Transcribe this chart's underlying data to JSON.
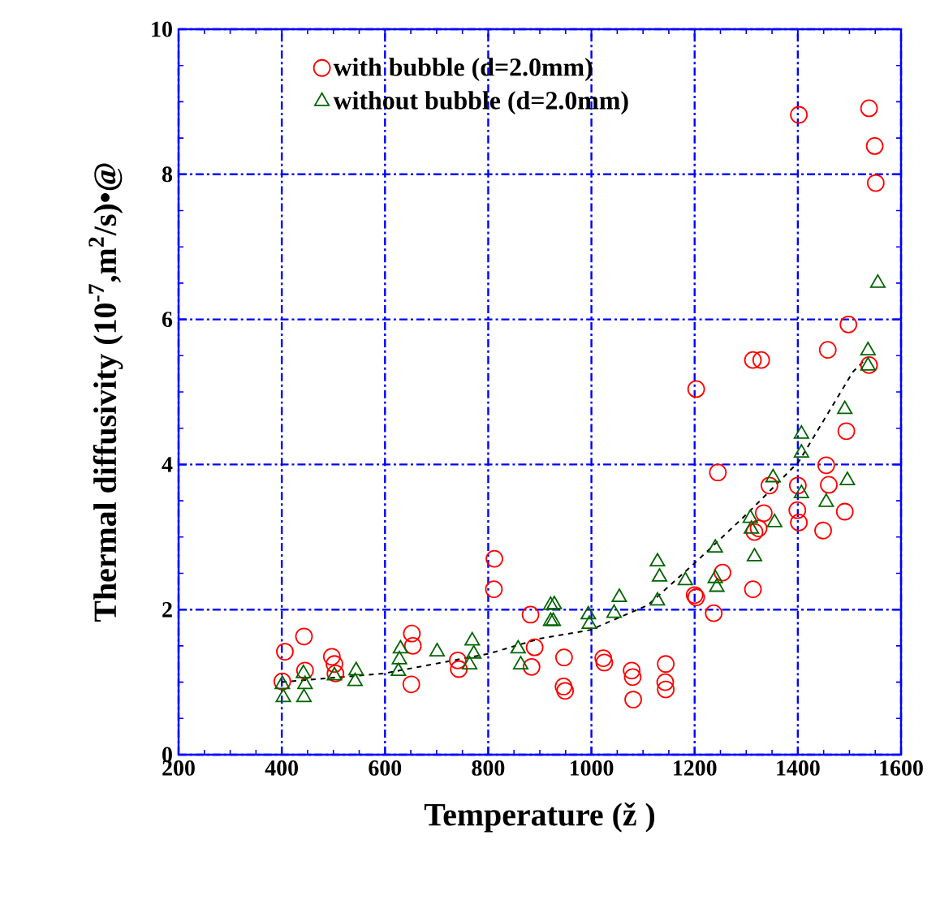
{
  "chart_data": {
    "type": "scatter",
    "xlabel": "Temperature (ž )",
    "ylabel": "Thermal diffusivity (10$^{-7}$,m$^{2}$/s)•@",
    "xlim": [
      200,
      1600
    ],
    "xticks": [
      200,
      400,
      600,
      800,
      1000,
      1200,
      1400,
      1600
    ],
    "ylim": [
      0,
      10
    ],
    "yticks": [
      0,
      2,
      4,
      6,
      8,
      10
    ],
    "grid": true,
    "legend": "top",
    "series": [
      {
        "name": "with bubble (d=2.0mm)",
        "color": "#ff0000",
        "marker": "circle",
        "x": [
          406,
          443,
          401,
          445,
          497,
          502,
          504,
          652,
          654,
          651,
          741,
          743,
          812,
          811,
          882,
          890,
          884,
          947,
          946,
          949,
          1023,
          1025,
          1078,
          1080,
          1081,
          1144,
          1143,
          1144,
          1203,
          1245,
          1200,
          1203,
          1237,
          1254,
          1313,
          1329,
          1313,
          1316,
          1324,
          1334,
          1345,
          1399,
          1402,
          1400,
          1458,
          1498,
          1455,
          1460,
          1449,
          1494,
          1491,
          1538,
          1402,
          1538,
          1549,
          1551
        ],
        "values": [
          1.42,
          1.63,
          1.01,
          1.16,
          1.35,
          1.25,
          1.12,
          1.67,
          1.5,
          0.97,
          1.3,
          1.18,
          2.7,
          2.28,
          1.93,
          1.48,
          1.21,
          1.34,
          0.94,
          0.88,
          1.33,
          1.27,
          1.16,
          1.07,
          0.76,
          1.25,
          1.0,
          0.9,
          5.04,
          3.89,
          2.2,
          2.17,
          1.95,
          2.51,
          5.44,
          5.44,
          2.28,
          3.07,
          3.12,
          3.33,
          3.71,
          3.37,
          3.2,
          3.71,
          5.58,
          5.93,
          3.99,
          3.72,
          3.09,
          4.46,
          3.35,
          5.37,
          8.82,
          8.91,
          8.39,
          7.88
        ]
      },
      {
        "name": "without bubble (d=2.0mm)",
        "color": "#006400",
        "marker": "triangle",
        "x": [
          401,
          403,
          442,
          445,
          443,
          502,
          544,
          542,
          630,
          628,
          626,
          701,
          769,
          772,
          764,
          858,
          863,
          921,
          921,
          928,
          926,
          994,
          996,
          1044,
          1054,
          1128,
          1132,
          1128,
          1182,
          1240,
          1240,
          1243,
          1308,
          1310,
          1316,
          1352,
          1355,
          1407,
          1407,
          1407,
          1455,
          1491,
          1496,
          1536,
          1536,
          1555
        ],
        "values": [
          0.97,
          0.79,
          1.12,
          0.97,
          0.79,
          1.09,
          1.16,
          1.01,
          1.46,
          1.31,
          1.15,
          1.42,
          1.57,
          1.39,
          1.24,
          1.46,
          1.24,
          2.06,
          1.84,
          2.07,
          1.84,
          1.93,
          1.8,
          1.95,
          2.17,
          2.66,
          2.45,
          2.12,
          2.4,
          2.85,
          2.43,
          2.31,
          3.26,
          3.11,
          2.73,
          3.82,
          3.2,
          4.42,
          4.16,
          3.6,
          3.48,
          4.76,
          3.78,
          5.57,
          5.36,
          6.5
        ]
      },
      {
        "type": "line",
        "color": "#000000",
        "line_style": "dashed",
        "marker": "none",
        "x": [
          400,
          598,
          800,
          900,
          998,
          1109,
          1203,
          1303,
          1402,
          1507,
          1530
        ],
        "values": [
          1.0,
          1.12,
          1.39,
          1.6,
          1.72,
          2.06,
          2.66,
          3.33,
          4.04,
          5.28,
          5.44
        ]
      }
    ]
  }
}
